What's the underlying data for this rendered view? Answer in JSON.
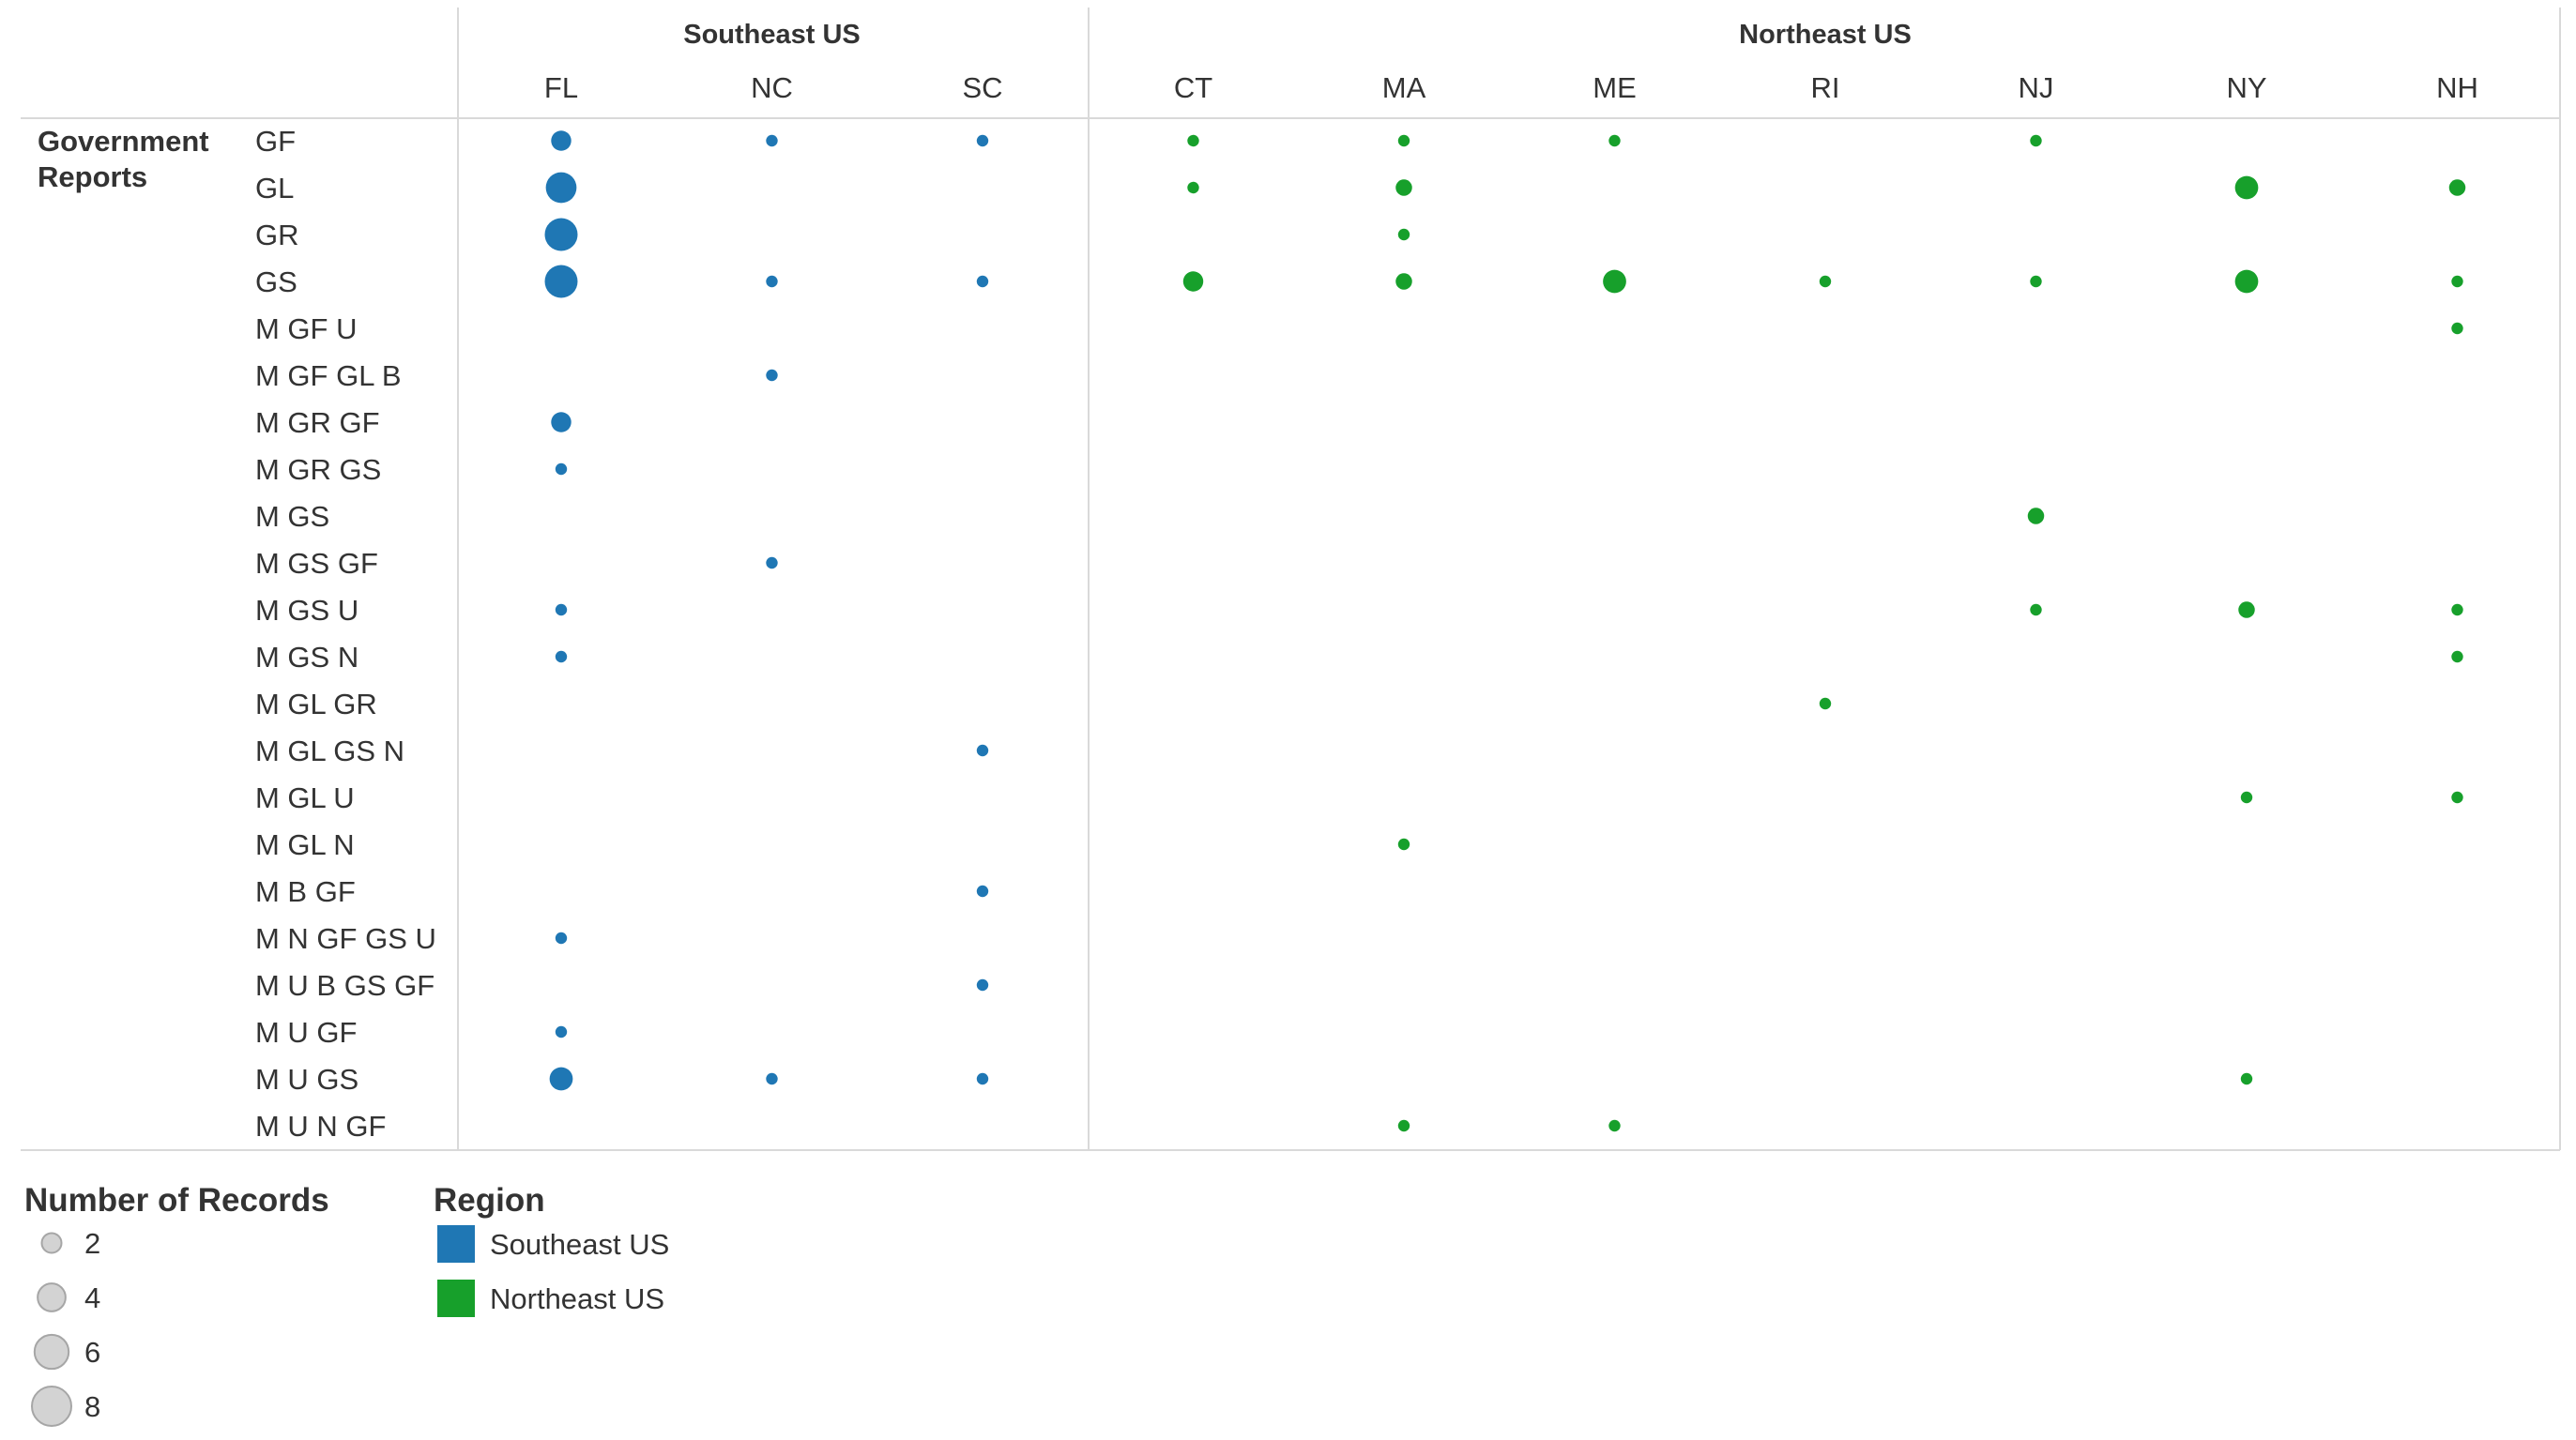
{
  "colors": {
    "Southeast US": "#1f77b4",
    "Northeast US": "#17a02b",
    "gridline": "#d9d9d9",
    "legend_circle_fill": "#d3d3d3",
    "legend_circle_stroke": "#a6a6a6"
  },
  "chart_data": {
    "type": "scatter",
    "regions": [
      {
        "name": "Southeast US",
        "states": [
          "FL",
          "NC",
          "SC"
        ]
      },
      {
        "name": "Northeast US",
        "states": [
          "CT",
          "MA",
          "ME",
          "RI",
          "NJ",
          "NY",
          "NH"
        ]
      }
    ],
    "row_group": "Government Reports",
    "rows": [
      "GF",
      "GL",
      "GR",
      "GS",
      "M GF U",
      "M GF GL B",
      "M GR GF",
      "M GR GS",
      "M GS",
      "M GS GF",
      "M GS U",
      "M GS N",
      "M GL GR",
      "M GL GS N",
      "M GL U",
      "M GL N",
      "M B GF",
      "M N GF GS U",
      "M U B GS GF",
      "M U GF",
      "M U GS",
      "M U N GF"
    ],
    "size_measure": "Number of Records",
    "points": [
      {
        "row": "GF",
        "state": "FL",
        "records": 3
      },
      {
        "row": "GF",
        "state": "NC",
        "records": 1
      },
      {
        "row": "GF",
        "state": "SC",
        "records": 1
      },
      {
        "row": "GF",
        "state": "CT",
        "records": 1
      },
      {
        "row": "GF",
        "state": "MA",
        "records": 1
      },
      {
        "row": "GF",
        "state": "ME",
        "records": 1
      },
      {
        "row": "GF",
        "state": "NJ",
        "records": 1
      },
      {
        "row": "GL",
        "state": "FL",
        "records": 7
      },
      {
        "row": "GL",
        "state": "CT",
        "records": 1
      },
      {
        "row": "GL",
        "state": "MA",
        "records": 2
      },
      {
        "row": "GL",
        "state": "NY",
        "records": 4
      },
      {
        "row": "GL",
        "state": "NH",
        "records": 2
      },
      {
        "row": "GR",
        "state": "FL",
        "records": 8
      },
      {
        "row": "GR",
        "state": "MA",
        "records": 1
      },
      {
        "row": "GS",
        "state": "FL",
        "records": 8
      },
      {
        "row": "GS",
        "state": "NC",
        "records": 1
      },
      {
        "row": "GS",
        "state": "SC",
        "records": 1
      },
      {
        "row": "GS",
        "state": "CT",
        "records": 3
      },
      {
        "row": "GS",
        "state": "MA",
        "records": 2
      },
      {
        "row": "GS",
        "state": "ME",
        "records": 4
      },
      {
        "row": "GS",
        "state": "RI",
        "records": 1
      },
      {
        "row": "GS",
        "state": "NJ",
        "records": 1
      },
      {
        "row": "GS",
        "state": "NY",
        "records": 4
      },
      {
        "row": "GS",
        "state": "NH",
        "records": 1
      },
      {
        "row": "M GF U",
        "state": "NH",
        "records": 1
      },
      {
        "row": "M GF GL B",
        "state": "NC",
        "records": 1
      },
      {
        "row": "M GR GF",
        "state": "FL",
        "records": 3
      },
      {
        "row": "M GR GS",
        "state": "FL",
        "records": 1
      },
      {
        "row": "M GS",
        "state": "NJ",
        "records": 2
      },
      {
        "row": "M GS GF",
        "state": "NC",
        "records": 1
      },
      {
        "row": "M GS U",
        "state": "FL",
        "records": 1
      },
      {
        "row": "M GS U",
        "state": "NJ",
        "records": 1
      },
      {
        "row": "M GS U",
        "state": "NY",
        "records": 2
      },
      {
        "row": "M GS U",
        "state": "NH",
        "records": 1
      },
      {
        "row": "M GS N",
        "state": "FL",
        "records": 1
      },
      {
        "row": "M GS N",
        "state": "NH",
        "records": 1
      },
      {
        "row": "M GL GR",
        "state": "RI",
        "records": 1
      },
      {
        "row": "M GL GS N",
        "state": "SC",
        "records": 1
      },
      {
        "row": "M GL U",
        "state": "NY",
        "records": 1
      },
      {
        "row": "M GL U",
        "state": "NH",
        "records": 1
      },
      {
        "row": "M GL N",
        "state": "MA",
        "records": 1
      },
      {
        "row": "M B GF",
        "state": "SC",
        "records": 1
      },
      {
        "row": "M N GF GS U",
        "state": "FL",
        "records": 1
      },
      {
        "row": "M U B GS GF",
        "state": "SC",
        "records": 1
      },
      {
        "row": "M U GF",
        "state": "FL",
        "records": 1
      },
      {
        "row": "M U GS",
        "state": "FL",
        "records": 4
      },
      {
        "row": "M U GS",
        "state": "NC",
        "records": 1
      },
      {
        "row": "M U GS",
        "state": "SC",
        "records": 1
      },
      {
        "row": "M U GS",
        "state": "NY",
        "records": 1
      },
      {
        "row": "M U N GF",
        "state": "MA",
        "records": 1
      },
      {
        "row": "M U N GF",
        "state": "ME",
        "records": 1
      }
    ],
    "size_legend": {
      "title": "Number of Records",
      "values": [
        "2",
        "4",
        "6",
        "8"
      ]
    },
    "color_legend": {
      "title": "Region",
      "items": [
        "Southeast US",
        "Northeast US"
      ]
    }
  }
}
